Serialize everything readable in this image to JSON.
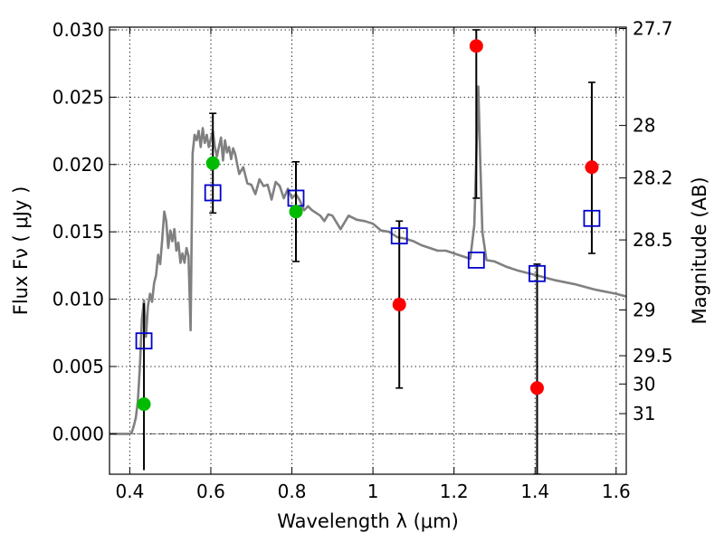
{
  "chart_data": {
    "type": "scatter",
    "title": "",
    "xlabel": "Wavelength  λ (μm)",
    "ylabel": "Flux  Fν  ( μJy )",
    "y2label": "Magnitude (AB)",
    "xlim": [
      0.35,
      1.625
    ],
    "ylim": [
      -0.003,
      0.0302
    ],
    "grid": true,
    "x_ticks": [
      {
        "value": 0.4,
        "label": "0.4"
      },
      {
        "value": 0.6,
        "label": "0.6"
      },
      {
        "value": 0.8,
        "label": "0.8"
      },
      {
        "value": 1.0,
        "label": "1"
      },
      {
        "value": 1.2,
        "label": "1.2"
      },
      {
        "value": 1.4,
        "label": "1.4"
      },
      {
        "value": 1.6,
        "label": "1.6"
      }
    ],
    "y_ticks": [
      {
        "value": 0.0,
        "label": "0.000"
      },
      {
        "value": 0.005,
        "label": "0.005"
      },
      {
        "value": 0.01,
        "label": "0.010"
      },
      {
        "value": 0.015,
        "label": "0.015"
      },
      {
        "value": 0.02,
        "label": "0.020"
      },
      {
        "value": 0.025,
        "label": "0.025"
      },
      {
        "value": 0.03,
        "label": "0.030"
      }
    ],
    "y2_ticks": [
      {
        "flux": 0.0301,
        "label": "27.7"
      },
      {
        "flux": 0.0229,
        "label": "28"
      },
      {
        "flux": 0.019,
        "label": "28.2"
      },
      {
        "flux": 0.0144,
        "label": "28.5"
      },
      {
        "flux": 0.0092,
        "label": "29"
      },
      {
        "flux": 0.0058,
        "label": "29.5"
      },
      {
        "flux": 0.0037,
        "label": "30"
      },
      {
        "flux": 0.0015,
        "label": "31"
      }
    ],
    "series": [
      {
        "role": "model-spectrum",
        "kind": "line",
        "color": "#808080",
        "x": [
          0.35,
          0.39,
          0.395,
          0.4,
          0.405,
          0.41,
          0.415,
          0.42,
          0.425,
          0.43,
          0.435,
          0.44,
          0.445,
          0.45,
          0.455,
          0.46,
          0.465,
          0.47,
          0.475,
          0.48,
          0.485,
          0.49,
          0.495,
          0.5,
          0.505,
          0.51,
          0.515,
          0.52,
          0.525,
          0.53,
          0.535,
          0.54,
          0.545,
          0.55,
          0.555,
          0.56,
          0.565,
          0.57,
          0.575,
          0.58,
          0.585,
          0.59,
          0.595,
          0.6,
          0.605,
          0.61,
          0.615,
          0.62,
          0.625,
          0.63,
          0.635,
          0.64,
          0.645,
          0.65,
          0.655,
          0.66,
          0.67,
          0.68,
          0.69,
          0.7,
          0.71,
          0.72,
          0.73,
          0.74,
          0.75,
          0.76,
          0.77,
          0.78,
          0.79,
          0.8,
          0.81,
          0.82,
          0.83,
          0.84,
          0.85,
          0.86,
          0.87,
          0.88,
          0.89,
          0.9,
          0.92,
          0.94,
          0.96,
          0.98,
          1.0,
          1.02,
          1.04,
          1.06,
          1.08,
          1.1,
          1.12,
          1.14,
          1.16,
          1.18,
          1.2,
          1.22,
          1.24,
          1.25,
          1.255,
          1.26,
          1.265,
          1.27,
          1.28,
          1.3,
          1.33,
          1.36,
          1.4,
          1.45,
          1.5,
          1.55,
          1.6,
          1.625
        ],
        "y": [
          0.0,
          0.0,
          0.0,
          0.0,
          0.0001,
          0.0006,
          0.0012,
          0.0024,
          0.005,
          0.0085,
          0.0099,
          0.0072,
          0.0095,
          0.0104,
          0.0098,
          0.0112,
          0.0118,
          0.0133,
          0.0126,
          0.0144,
          0.0165,
          0.0158,
          0.0138,
          0.0151,
          0.0143,
          0.0152,
          0.0136,
          0.0142,
          0.0127,
          0.0134,
          0.0127,
          0.0138,
          0.0132,
          0.0077,
          0.0208,
          0.0222,
          0.0218,
          0.0225,
          0.0213,
          0.0227,
          0.0216,
          0.0222,
          0.0213,
          0.0219,
          0.0225,
          0.0213,
          0.0206,
          0.0213,
          0.022,
          0.0203,
          0.0218,
          0.0209,
          0.0213,
          0.0204,
          0.0212,
          0.0208,
          0.0193,
          0.0198,
          0.0186,
          0.0185,
          0.0178,
          0.0189,
          0.0184,
          0.0185,
          0.0174,
          0.0187,
          0.0184,
          0.0175,
          0.0182,
          0.0175,
          0.0178,
          0.0173,
          0.0166,
          0.0169,
          0.0166,
          0.0164,
          0.0162,
          0.0158,
          0.0163,
          0.0162,
          0.0152,
          0.0162,
          0.0159,
          0.0158,
          0.0156,
          0.0151,
          0.015,
          0.0146,
          0.0145,
          0.0143,
          0.014,
          0.0138,
          0.0136,
          0.0136,
          0.0134,
          0.0132,
          0.013,
          0.0155,
          0.0205,
          0.0258,
          0.02,
          0.015,
          0.0129,
          0.0128,
          0.0124,
          0.0121,
          0.0118,
          0.0114,
          0.0111,
          0.0107,
          0.0104,
          0.0102
        ]
      },
      {
        "role": "model-photometry",
        "kind": "open-square",
        "color": "#0000cc",
        "x": [
          0.435,
          0.605,
          0.81,
          1.065,
          1.255,
          1.405,
          1.54
        ],
        "y": [
          0.0069,
          0.0179,
          0.0175,
          0.0147,
          0.0129,
          0.0119,
          0.016
        ]
      },
      {
        "role": "detections",
        "kind": "filled-circle",
        "color": "#00bb00",
        "x": [
          0.435,
          0.605,
          0.81
        ],
        "y": [
          0.0022,
          0.0201,
          0.0165
        ],
        "yerr_low": [
          0.0049,
          0.0037,
          0.0037
        ],
        "yerr_high": [
          0.0075,
          0.0037,
          0.0037
        ],
        "error_caps": [
          false,
          true,
          true
        ]
      },
      {
        "role": "non-detections",
        "kind": "filled-circle",
        "color": "#ff0000",
        "x": [
          1.065,
          1.255,
          1.405,
          1.54
        ],
        "y": [
          0.0096,
          0.0288,
          0.0034,
          0.0198
        ],
        "yerr_low": [
          0.0062,
          0.0113,
          0.0064,
          0.0064
        ],
        "yerr_high": [
          0.0062,
          0.0012,
          0.0092,
          0.0063
        ],
        "error_caps": [
          true,
          true,
          true,
          true
        ]
      }
    ]
  }
}
